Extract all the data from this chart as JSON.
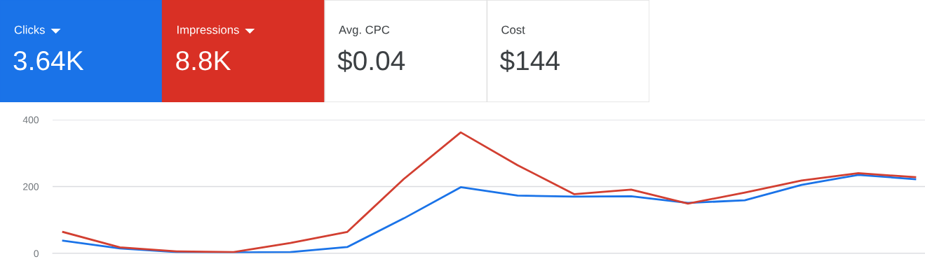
{
  "chart_data": [
    {
      "type": "other",
      "categories": [
        "Clicks",
        "Impressions",
        "Avg. CPC",
        "Cost"
      ],
      "value_labels": [
        "3.64K",
        "8.8K",
        "$0.04",
        "$144"
      ],
      "colors": [
        "#1a73e8",
        "#d93025",
        "#ffffff",
        "#ffffff"
      ]
    },
    {
      "type": "line",
      "categories": [
        null,
        null,
        null,
        null,
        null,
        null,
        null,
        null,
        null,
        null,
        null,
        null,
        null,
        null,
        null,
        null
      ],
      "series": [
        {
          "color": "#1a73e8",
          "values": [
            38,
            15,
            4,
            3,
            4,
            19,
            105,
            198,
            173,
            170,
            171,
            151,
            159,
            205,
            235,
            222
          ]
        },
        {
          "color": "#d23f31",
          "values": [
            64,
            18,
            6,
            4,
            31,
            64,
            223,
            362,
            264,
            177,
            191,
            149,
            182,
            218,
            240,
            228
          ]
        }
      ],
      "ylim": [
        0,
        400
      ],
      "yticks": [
        0,
        200,
        400
      ],
      "grid": "y",
      "marker": "none",
      "line_style": "solid"
    }
  ]
}
